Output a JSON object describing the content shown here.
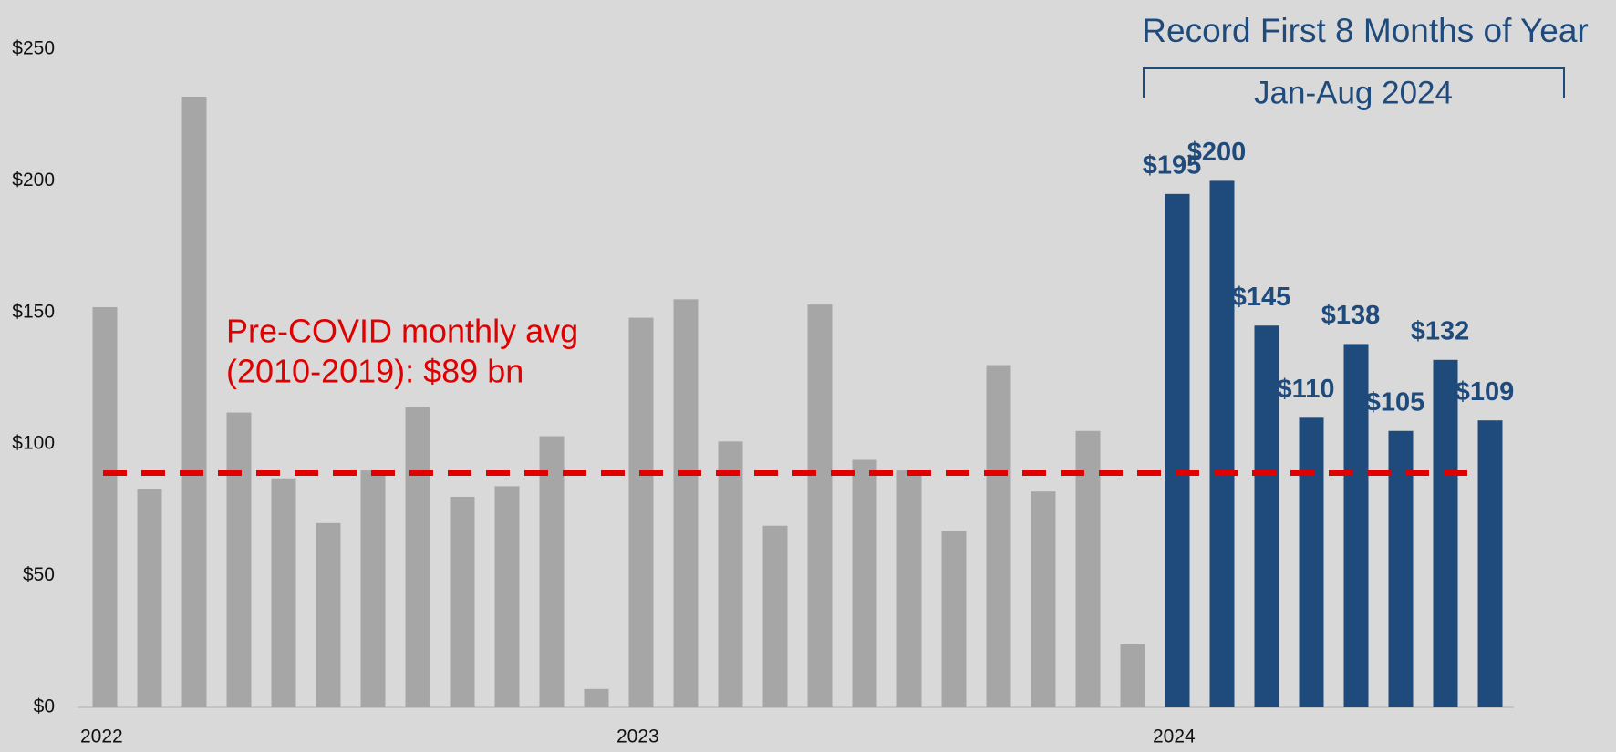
{
  "chart_data": {
    "type": "bar",
    "categories": [
      "2022",
      null,
      null,
      null,
      null,
      null,
      null,
      null,
      null,
      null,
      null,
      null,
      "2023",
      null,
      null,
      null,
      null,
      null,
      null,
      null,
      null,
      null,
      null,
      null,
      "2024",
      null,
      null,
      null,
      null,
      null,
      null,
      null
    ],
    "values": [
      152,
      83,
      232,
      112,
      87,
      70,
      90,
      114,
      80,
      84,
      103,
      7,
      148,
      155,
      101,
      69,
      153,
      94,
      90,
      67,
      130,
      82,
      105,
      24,
      195,
      200,
      145,
      110,
      138,
      105,
      132,
      109
    ],
    "value_labels": [
      null,
      null,
      null,
      null,
      null,
      null,
      null,
      null,
      null,
      null,
      null,
      null,
      null,
      null,
      null,
      null,
      null,
      null,
      null,
      null,
      null,
      null,
      null,
      null,
      "$195",
      "$200",
      "$145",
      "$110",
      "$138",
      "$105",
      "$132",
      "$109"
    ],
    "colors": [
      "#a6a6a6",
      "#a6a6a6",
      "#a6a6a6",
      "#a6a6a6",
      "#a6a6a6",
      "#a6a6a6",
      "#a6a6a6",
      "#a6a6a6",
      "#a6a6a6",
      "#a6a6a6",
      "#a6a6a6",
      "#a6a6a6",
      "#a6a6a6",
      "#a6a6a6",
      "#a6a6a6",
      "#a6a6a6",
      "#a6a6a6",
      "#a6a6a6",
      "#a6a6a6",
      "#a6a6a6",
      "#a6a6a6",
      "#a6a6a6",
      "#a6a6a6",
      "#a6a6a6",
      "#1e4a7c",
      "#1e4a7c",
      "#1e4a7c",
      "#1e4a7c",
      "#1e4a7c",
      "#1e4a7c",
      "#1e4a7c",
      "#1e4a7c"
    ],
    "ylim": [
      0,
      250
    ],
    "yticks": [
      {
        "value": 0,
        "label": "$0"
      },
      {
        "value": 50,
        "label": "$50"
      },
      {
        "value": 100,
        "label": "$100"
      },
      {
        "value": 150,
        "label": "$150"
      },
      {
        "value": 200,
        "label": "$200"
      },
      {
        "value": 250,
        "label": "$250"
      }
    ],
    "grid": false,
    "reference_line": {
      "value": 89,
      "color": "#e00000",
      "label": [
        "Pre-COVID monthly avg",
        "(2010-2019): $89 bn"
      ]
    },
    "annotation": {
      "title": "Record First 8 Months of Year",
      "bracket_label": "Jan-Aug 2024",
      "color": "#1e4a7c"
    }
  }
}
